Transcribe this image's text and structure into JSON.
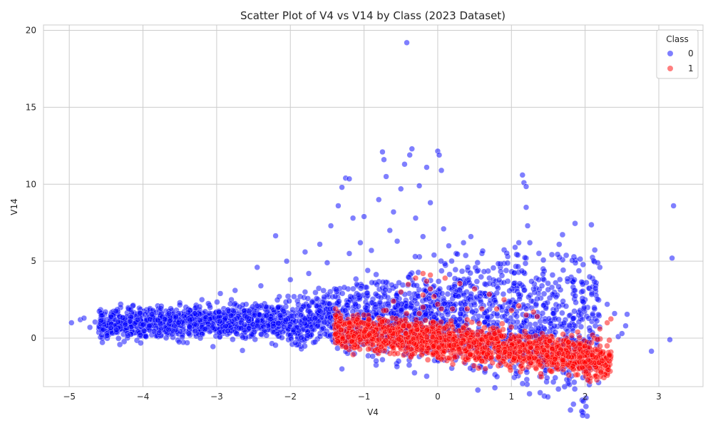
{
  "chart_data": {
    "type": "scatter",
    "title": "Scatter Plot of V4 vs V14 by Class (2023 Dataset)",
    "xlabel": "V4",
    "ylabel": "V14",
    "xlim": [
      -5.35,
      3.6
    ],
    "ylim": [
      -3.15,
      20.35
    ],
    "x_ticks": [
      -5,
      -4,
      -3,
      -2,
      -1,
      0,
      1,
      2,
      3
    ],
    "x_tick_labels": [
      "−5",
      "−4",
      "−3",
      "−2",
      "−1",
      "0",
      "1",
      "2",
      "3"
    ],
    "y_ticks": [
      0,
      5,
      10,
      15,
      20
    ],
    "y_tick_labels": [
      "0",
      "5",
      "10",
      "15",
      "20"
    ],
    "grid": true,
    "legend": {
      "title": "Class",
      "placement": "top-right",
      "entries": [
        {
          "label": "0",
          "color": "#0000ff"
        },
        {
          "label": "1",
          "color": "#ff0000"
        }
      ]
    },
    "series": [
      {
        "name": "0",
        "color": "#0000ff",
        "points": [
          [
            -4.97,
            1.0
          ],
          [
            -4.85,
            1.2
          ],
          [
            -4.8,
            1.3
          ],
          [
            -4.72,
            0.7
          ],
          [
            -4.65,
            1.05
          ],
          [
            -4.55,
            0.0
          ],
          [
            -4.52,
            1.55
          ],
          [
            -4.45,
            0.8
          ],
          [
            -4.4,
            0.45
          ],
          [
            -4.3,
            0.9
          ],
          [
            -4.25,
            1.3
          ],
          [
            -4.15,
            1.6
          ],
          [
            -4.1,
            0.35
          ],
          [
            -4.05,
            1.95
          ],
          [
            -3.95,
            0.6
          ],
          [
            -3.9,
            1.1
          ],
          [
            -3.8,
            2.1
          ],
          [
            -3.75,
            0.2
          ],
          [
            -3.65,
            1.45
          ],
          [
            -3.55,
            0.75
          ],
          [
            -3.5,
            2.3
          ],
          [
            -3.4,
            -0.3
          ],
          [
            -3.35,
            1.8
          ],
          [
            -3.25,
            0.4
          ],
          [
            -3.2,
            2.5
          ],
          [
            -3.1,
            1.2
          ],
          [
            -3.05,
            -0.55
          ],
          [
            -2.95,
            2.9
          ],
          [
            -2.9,
            0.85
          ],
          [
            -2.8,
            1.6
          ],
          [
            -2.75,
            3.1
          ],
          [
            -2.65,
            -0.8
          ],
          [
            -2.6,
            2.2
          ],
          [
            -2.55,
            0.1
          ],
          [
            -2.45,
            4.6
          ],
          [
            -2.4,
            3.4
          ],
          [
            -2.3,
            1.0
          ],
          [
            -2.25,
            -0.35
          ],
          [
            -2.2,
            6.65
          ],
          [
            -2.15,
            2.7
          ],
          [
            -2.05,
            5.0
          ],
          [
            -2.0,
            3.8
          ],
          [
            -1.95,
            0.55
          ],
          [
            -1.9,
            1.9
          ],
          [
            -1.85,
            -0.7
          ],
          [
            -1.8,
            5.6
          ],
          [
            -1.75,
            4.2
          ],
          [
            -1.7,
            2.4
          ],
          [
            -1.6,
            6.1
          ],
          [
            -1.55,
            1.3
          ],
          [
            -1.5,
            4.9
          ],
          [
            -1.45,
            7.3
          ],
          [
            -1.4,
            3.2
          ],
          [
            -1.35,
            8.6
          ],
          [
            -1.3,
            9.8
          ],
          [
            -1.25,
            10.4
          ],
          [
            -1.2,
            10.35
          ],
          [
            -1.2,
            5.5
          ],
          [
            -1.15,
            7.8
          ],
          [
            -1.1,
            2.9
          ],
          [
            -1.05,
            6.2
          ],
          [
            -1.0,
            7.9
          ],
          [
            -0.95,
            4.4
          ],
          [
            -0.9,
            5.7
          ],
          [
            -0.85,
            3.6
          ],
          [
            -0.8,
            9.0
          ],
          [
            -0.75,
            12.1
          ],
          [
            -0.73,
            11.6
          ],
          [
            -0.7,
            10.5
          ],
          [
            -0.65,
            7.0
          ],
          [
            -0.6,
            8.2
          ],
          [
            -0.55,
            6.3
          ],
          [
            -0.5,
            9.7
          ],
          [
            -0.45,
            11.3
          ],
          [
            -0.42,
            19.2
          ],
          [
            -0.38,
            11.9
          ],
          [
            -0.35,
            12.3
          ],
          [
            -0.3,
            7.8
          ],
          [
            -0.25,
            9.9
          ],
          [
            -0.2,
            6.6
          ],
          [
            -0.15,
            11.1
          ],
          [
            -0.1,
            8.8
          ],
          [
            -0.05,
            5.4
          ],
          [
            0.0,
            12.15
          ],
          [
            0.02,
            11.9
          ],
          [
            0.05,
            10.9
          ],
          [
            0.08,
            7.1
          ],
          [
            0.15,
            6.0
          ],
          [
            0.25,
            5.5
          ],
          [
            0.35,
            6.2
          ],
          [
            0.45,
            6.6
          ],
          [
            0.55,
            4.4
          ],
          [
            0.6,
            5.5
          ],
          [
            0.7,
            3.9
          ],
          [
            0.85,
            4.6
          ],
          [
            0.95,
            5.3
          ],
          [
            1.05,
            5.9
          ],
          [
            1.1,
            6.2
          ],
          [
            1.15,
            10.6
          ],
          [
            1.17,
            10.1
          ],
          [
            1.2,
            9.85
          ],
          [
            1.2,
            8.5
          ],
          [
            1.22,
            7.3
          ],
          [
            1.25,
            6.2
          ],
          [
            1.2,
            5.2
          ],
          [
            1.18,
            4.2
          ],
          [
            1.3,
            3.2
          ],
          [
            1.4,
            2.6
          ],
          [
            1.55,
            3.3
          ],
          [
            1.6,
            3.6
          ],
          [
            1.7,
            2.4
          ],
          [
            1.8,
            1.5
          ],
          [
            1.85,
            3.1
          ],
          [
            1.95,
            3.0
          ],
          [
            2.0,
            2.5
          ],
          [
            2.05,
            3.25
          ],
          [
            2.1,
            5.25
          ],
          [
            2.15,
            3.6
          ],
          [
            2.2,
            4.6
          ],
          [
            2.3,
            2.2
          ],
          [
            2.4,
            1.6
          ],
          [
            2.45,
            0.1
          ],
          [
            2.5,
            0.3
          ],
          [
            2.55,
            0.8
          ],
          [
            2.57,
            1.55
          ],
          [
            2.9,
            -0.85
          ],
          [
            3.15,
            -0.1
          ],
          [
            3.18,
            5.2
          ],
          [
            3.2,
            8.6
          ],
          [
            -1.3,
            -2.0
          ],
          [
            -0.75,
            -1.4
          ],
          [
            -0.25,
            -1.2
          ],
          [
            -0.6,
            1.2
          ],
          [
            -1.0,
            0.3
          ],
          [
            -2.7,
            1.5
          ],
          [
            -3.6,
            1.0
          ],
          [
            -1.7,
            0.9
          ],
          [
            -0.3,
            2.6
          ],
          [
            0.3,
            3.1
          ],
          [
            0.5,
            1.6
          ],
          [
            0.75,
            2.8
          ],
          [
            1.0,
            1.9
          ],
          [
            -2.3,
            2.0
          ],
          [
            -1.4,
            1.7
          ],
          [
            -3.0,
            0.4
          ],
          [
            -4.2,
            0.9
          ],
          [
            -4.6,
            0.6
          ],
          [
            -2.8,
            2.5
          ],
          [
            -1.8,
            3.0
          ],
          [
            -0.9,
            2.3
          ]
        ]
      },
      {
        "name": "1",
        "color": "#ff0000",
        "points": [
          [
            -1.4,
            0.85
          ],
          [
            -1.3,
            0.7
          ],
          [
            -1.2,
            0.8
          ],
          [
            -1.1,
            0.75
          ],
          [
            -1.0,
            0.5
          ],
          [
            -0.9,
            0.3
          ],
          [
            -0.8,
            1.3
          ],
          [
            -0.7,
            1.8
          ],
          [
            -0.6,
            2.4
          ],
          [
            -0.5,
            3.0
          ],
          [
            -0.4,
            3.5
          ],
          [
            -0.3,
            3.9
          ],
          [
            -0.2,
            4.2
          ],
          [
            -0.15,
            3.7
          ],
          [
            -0.1,
            3.2
          ],
          [
            -0.05,
            2.7
          ],
          [
            0.0,
            2.2
          ],
          [
            0.05,
            1.9
          ],
          [
            -0.2,
            2.8
          ],
          [
            -0.2,
            2.0
          ],
          [
            -0.25,
            1.6
          ],
          [
            -0.1,
            4.1
          ],
          [
            0.1,
            3.9
          ],
          [
            0.3,
            3.55
          ],
          [
            0.5,
            3.2
          ],
          [
            0.7,
            2.85
          ],
          [
            0.9,
            2.5
          ],
          [
            1.1,
            2.1
          ],
          [
            1.3,
            1.7
          ],
          [
            1.35,
            1.4
          ],
          [
            0.2,
            1.9
          ],
          [
            0.4,
            1.9
          ],
          [
            0.6,
            1.9
          ],
          [
            0.8,
            1.9
          ],
          [
            1.0,
            1.8
          ],
          [
            1.2,
            1.5
          ],
          [
            -0.5,
            0.0
          ],
          [
            -0.3,
            -0.5
          ],
          [
            -0.1,
            -0.3
          ],
          [
            0.1,
            -0.6
          ],
          [
            0.3,
            -0.9
          ],
          [
            0.5,
            -0.8
          ],
          [
            0.7,
            -1.3
          ],
          [
            0.9,
            -1.5
          ],
          [
            1.1,
            -1.2
          ],
          [
            1.3,
            -0.9
          ],
          [
            1.5,
            -1.4
          ],
          [
            1.7,
            -1.7
          ],
          [
            1.9,
            -2.0
          ],
          [
            1.8,
            -1.8
          ],
          [
            2.0,
            -0.5
          ],
          [
            2.1,
            0.2
          ],
          [
            2.2,
            0.6
          ],
          [
            2.3,
            1.0
          ],
          [
            2.35,
            1.25
          ],
          [
            2.3,
            -1.6
          ],
          [
            2.25,
            -1.7
          ],
          [
            2.35,
            -0.9
          ],
          [
            1.6,
            -0.3
          ],
          [
            1.4,
            -0.4
          ],
          [
            0.6,
            0.4
          ],
          [
            0.8,
            0.6
          ],
          [
            -0.8,
            -0.4
          ],
          [
            -0.6,
            -0.8
          ],
          [
            -0.4,
            -1.0
          ],
          [
            0.0,
            -1.1
          ],
          [
            0.2,
            0.3
          ],
          [
            0.4,
            1.2
          ],
          [
            1.0,
            0.2
          ],
          [
            1.2,
            -0.5
          ],
          [
            1.7,
            -0.2
          ],
          [
            1.9,
            0.4
          ],
          [
            2.1,
            -1.2
          ],
          [
            0.8,
            -0.5
          ],
          [
            -0.9,
            1.0
          ],
          [
            -1.3,
            0.2
          ],
          [
            2.0,
            -1.5
          ],
          [
            1.55,
            0.1
          ],
          [
            0.95,
            -0.9
          ],
          [
            2.2,
            -0.8
          ]
        ]
      }
    ]
  }
}
